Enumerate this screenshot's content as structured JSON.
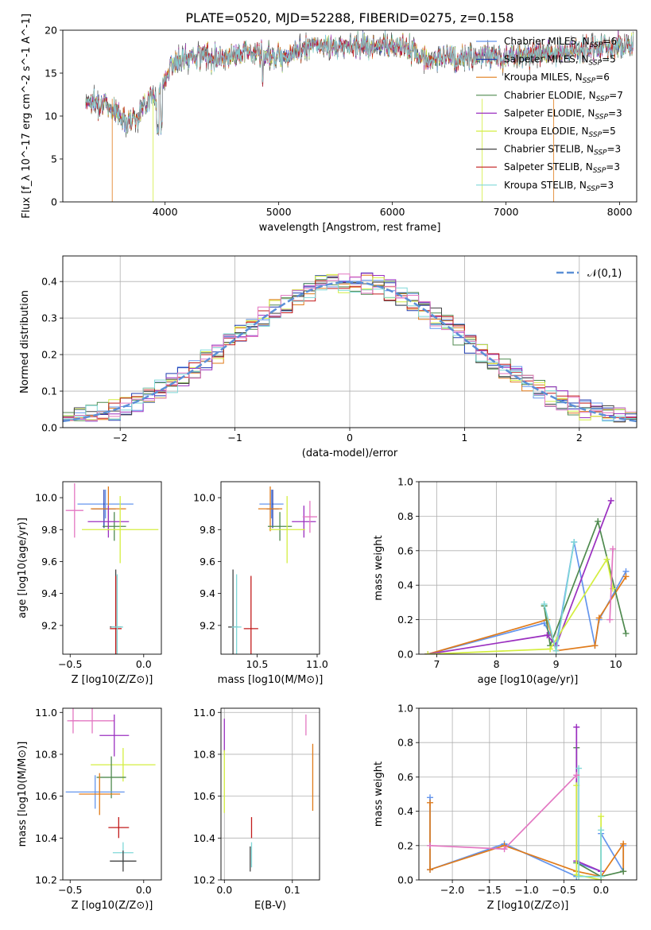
{
  "figure": {
    "title": "PLATE=0520, MJD=52288, FIBERID=0275, z=0.158"
  },
  "chart_data": [
    {
      "type": "line",
      "name": "spectrum",
      "xlabel": "wavelength [Angstrom, rest frame]",
      "ylabel": "Flux [f_λ 10^-17 erg cm^-2 s^-1 A^-1]",
      "xlim": [
        3100,
        8150
      ],
      "ylim": [
        0,
        20
      ],
      "xticks": [
        4000,
        5000,
        6000,
        7000,
        8000
      ],
      "yticks": [
        0,
        5,
        10,
        15,
        20
      ],
      "legend_loc": "top-right",
      "series": [
        {
          "name": "Chabrier MILES, N_SSP=6",
          "color": "#6495ed"
        },
        {
          "name": "Salpeter MILES, N_SSP=5",
          "color": "#1f3bb0"
        },
        {
          "name": "Kroupa MILES, N_SSP=6",
          "color": "#e07b1a"
        },
        {
          "name": "Chabrier ELODIE, N_SSP=7",
          "color": "#4f8a4f"
        },
        {
          "name": "Salpeter ELODIE, N_SSP=3",
          "color": "#9b30c0"
        },
        {
          "name": "Kroupa ELODIE, N_SSP=5",
          "color": "#d4ee40"
        },
        {
          "name": "Chabrier STELIB, N_SSP=3",
          "color": "#444444"
        },
        {
          "name": "Salpeter STELIB, N_SSP=3",
          "color": "#c21b1b"
        },
        {
          "name": "Kroupa STELIB, N_SSP=3",
          "color": "#7fd8d8"
        }
      ],
      "continuum": {
        "x": [
          3300,
          3450,
          3550,
          3650,
          3750,
          3850,
          3950,
          4050,
          4150,
          4300,
          4500,
          4700,
          4900,
          5100,
          5300,
          5500,
          5700,
          5900,
          6100,
          6300,
          6500,
          6700,
          6900,
          7100,
          7300,
          7500,
          7700,
          7900,
          8100
        ],
        "y": [
          11.8,
          11.5,
          10.8,
          9.5,
          9.8,
          12.0,
          12.5,
          16.0,
          16.5,
          17.2,
          16.8,
          17.6,
          17.0,
          17.2,
          18.2,
          18.0,
          18.3,
          18.0,
          18.3,
          16.5,
          17.0,
          16.8,
          17.0,
          17.0,
          17.4,
          17.5,
          17.8,
          18.1,
          18.4
        ]
      }
    },
    {
      "type": "line",
      "name": "residual-distribution",
      "xlabel": "(data-model)/error",
      "ylabel": "Normed distribution",
      "xlim": [
        -2.5,
        2.5
      ],
      "ylim": [
        0,
        0.47
      ],
      "xticks": [
        -2,
        -1,
        0,
        1,
        2
      ],
      "yticks": [
        0.0,
        0.1,
        0.2,
        0.3,
        0.4
      ],
      "grid": true,
      "legend_loc": "top-right",
      "reference": {
        "name": "𝒩(0,1)",
        "color": "#5b8fd6",
        "style": "dashed"
      }
    },
    {
      "type": "scatter",
      "name": "age-vs-Z",
      "xlabel": "Z [log10(Z/Z⊙)]",
      "ylabel": "age [log10(age/yr)]",
      "xlim": [
        -0.55,
        0.12
      ],
      "ylim": [
        9.02,
        10.1
      ],
      "xticks": [
        -0.5,
        0.0
      ],
      "yticks": [
        9.2,
        9.4,
        9.6,
        9.8,
        10.0
      ],
      "points": [
        {
          "x": -0.26,
          "y": 9.96,
          "xerr": 0.19,
          "yerr": 0.09,
          "color": "#6495ed"
        },
        {
          "x": -0.27,
          "y": 9.93,
          "xerr": 0.08,
          "yerr": 0.12,
          "color": "#1f3bb0"
        },
        {
          "x": -0.24,
          "y": 9.93,
          "xerr": 0.12,
          "yerr": 0.14,
          "color": "#e07b1a"
        },
        {
          "x": -0.2,
          "y": 9.82,
          "xerr": 0.08,
          "yerr": 0.09,
          "color": "#4f8a4f"
        },
        {
          "x": -0.24,
          "y": 9.85,
          "xerr": 0.14,
          "yerr": 0.1,
          "color": "#9b30c0"
        },
        {
          "x": -0.16,
          "y": 9.8,
          "xerr": 0.26,
          "yerr": 0.21,
          "color": "#d4ee40"
        },
        {
          "x": -0.19,
          "y": 9.19,
          "xerr": 0.04,
          "yerr": 0.36,
          "color": "#444444"
        },
        {
          "x": -0.19,
          "y": 9.18,
          "xerr": 0.04,
          "yerr": 0.33,
          "color": "#c21b1b"
        },
        {
          "x": -0.18,
          "y": 9.19,
          "xerr": 0.04,
          "yerr": 0.33,
          "color": "#7fd8d8"
        },
        {
          "x": -0.47,
          "y": 9.92,
          "xerr": 0.06,
          "yerr": 0.17,
          "color": "#e377c2"
        }
      ]
    },
    {
      "type": "scatter",
      "name": "age-vs-mass",
      "xlabel": "mass [log10(M/M⊙)]",
      "ylabel": "",
      "xlim": [
        10.2,
        11.02
      ],
      "ylim": [
        9.02,
        10.1
      ],
      "xticks": [
        10.5,
        11.0
      ],
      "yticks": [
        9.2,
        9.4,
        9.6,
        9.8,
        10.0
      ],
      "points": [
        {
          "x": 10.62,
          "y": 9.96,
          "xerr": 0.1,
          "yerr": 0.09,
          "color": "#6495ed"
        },
        {
          "x": 10.63,
          "y": 9.93,
          "xerr": 0.05,
          "yerr": 0.12,
          "color": "#1f3bb0"
        },
        {
          "x": 10.61,
          "y": 9.93,
          "xerr": 0.1,
          "yerr": 0.14,
          "color": "#e07b1a"
        },
        {
          "x": 10.69,
          "y": 9.82,
          "xerr": 0.1,
          "yerr": 0.09,
          "color": "#4f8a4f"
        },
        {
          "x": 10.89,
          "y": 9.85,
          "xerr": 0.1,
          "yerr": 0.1,
          "color": "#9b30c0"
        },
        {
          "x": 10.75,
          "y": 9.8,
          "xerr": 0.15,
          "yerr": 0.21,
          "color": "#d4ee40"
        },
        {
          "x": 10.3,
          "y": 9.19,
          "xerr": 0.04,
          "yerr": 0.36,
          "color": "#444444"
        },
        {
          "x": 10.45,
          "y": 9.18,
          "xerr": 0.06,
          "yerr": 0.33,
          "color": "#c21b1b"
        },
        {
          "x": 10.33,
          "y": 9.19,
          "xerr": 0.04,
          "yerr": 0.33,
          "color": "#7fd8d8"
        },
        {
          "x": 10.94,
          "y": 9.88,
          "xerr": 0.06,
          "yerr": 0.1,
          "color": "#e377c2"
        }
      ]
    },
    {
      "type": "line",
      "name": "mass-weight-vs-age",
      "xlabel": "age [log10(age/yr)]",
      "ylabel": "mass weight",
      "xlim": [
        6.7,
        10.35
      ],
      "ylim": [
        0,
        1.0
      ],
      "xticks": [
        7,
        8,
        9,
        10
      ],
      "yticks": [
        0.0,
        0.2,
        0.4,
        0.6,
        0.8,
        1.0
      ],
      "grid": true,
      "series": [
        {
          "color": "#6495ed",
          "x": [
            6.85,
            8.8,
            9.0,
            9.3,
            9.65,
            9.72,
            10.17
          ],
          "y": [
            0.0,
            0.18,
            0.05,
            0.65,
            0.05,
            0.2,
            0.48
          ]
        },
        {
          "color": "#e07b1a",
          "x": [
            6.85,
            8.85,
            9.0,
            9.65,
            9.72,
            10.17
          ],
          "y": [
            0.0,
            0.2,
            0.02,
            0.05,
            0.21,
            0.45
          ]
        },
        {
          "color": "#4f8a4f",
          "x": [
            8.8,
            8.9,
            9.7,
            10.17
          ],
          "y": [
            0.28,
            0.05,
            0.77,
            0.12
          ]
        },
        {
          "color": "#9b30c0",
          "x": [
            6.85,
            8.85,
            9.0,
            9.92
          ],
          "y": [
            0.0,
            0.11,
            0.05,
            0.89
          ]
        },
        {
          "color": "#d4ee40",
          "x": [
            6.85,
            8.9,
            9.85,
            9.95
          ],
          "y": [
            0.0,
            0.03,
            0.55,
            0.38
          ]
        },
        {
          "color": "#7fd8d8",
          "x": [
            8.8,
            9.0,
            9.3
          ],
          "y": [
            0.29,
            0.02,
            0.65
          ]
        },
        {
          "color": "#e377c2",
          "x": [
            9.9,
            9.95
          ],
          "y": [
            0.2,
            0.61
          ]
        }
      ]
    },
    {
      "type": "scatter",
      "name": "mass-vs-Z",
      "xlabel": "Z [log10(Z/Z⊙)]",
      "ylabel": "mass [log10(M/M⊙)]",
      "xlim": [
        -0.55,
        0.12
      ],
      "ylim": [
        10.2,
        11.02
      ],
      "xticks": [
        -0.5,
        0.0
      ],
      "yticks": [
        10.2,
        10.4,
        10.6,
        10.8,
        11.0
      ],
      "points": [
        {
          "x": -0.48,
          "y": 10.96,
          "xerr": 0.04,
          "yerr": 0.06,
          "color": "#e377c2"
        },
        {
          "x": -0.35,
          "y": 10.96,
          "xerr": 0.15,
          "yerr": 0.06,
          "color": "#e377c2"
        },
        {
          "x": -0.2,
          "y": 10.89,
          "xerr": 0.1,
          "yerr": 0.1,
          "color": "#9b30c0"
        },
        {
          "x": -0.14,
          "y": 10.75,
          "xerr": 0.22,
          "yerr": 0.08,
          "color": "#d4ee40"
        },
        {
          "x": -0.22,
          "y": 10.69,
          "xerr": 0.1,
          "yerr": 0.1,
          "color": "#4f8a4f"
        },
        {
          "x": -0.33,
          "y": 10.62,
          "xerr": 0.2,
          "yerr": 0.08,
          "color": "#6495ed"
        },
        {
          "x": -0.3,
          "y": 10.61,
          "xerr": 0.14,
          "yerr": 0.1,
          "color": "#e07b1a"
        },
        {
          "x": -0.17,
          "y": 10.45,
          "xerr": 0.07,
          "yerr": 0.05,
          "color": "#c21b1b"
        },
        {
          "x": -0.14,
          "y": 10.33,
          "xerr": 0.07,
          "yerr": 0.05,
          "color": "#7fd8d8"
        },
        {
          "x": -0.14,
          "y": 10.29,
          "xerr": 0.09,
          "yerr": 0.05,
          "color": "#444444"
        }
      ]
    },
    {
      "type": "scatter",
      "name": "mass-vs-ebv",
      "xlabel": "E(B-V)",
      "ylabel": "",
      "xlim": [
        -0.005,
        0.14
      ],
      "ylim": [
        10.2,
        11.02
      ],
      "xticks": [
        0.0,
        0.1
      ],
      "yticks": [
        10.2,
        10.4,
        10.6,
        10.8,
        11.0
      ],
      "grid": true,
      "points": [
        {
          "x": 0.0,
          "y": 10.89,
          "yerr": 0.08,
          "color": "#9b30c0"
        },
        {
          "x": 0.0,
          "y": 10.67,
          "yerr": 0.15,
          "color": "#d4ee40"
        },
        {
          "x": 0.04,
          "y": 10.45,
          "yerr": 0.05,
          "color": "#c21b1b"
        },
        {
          "x": 0.038,
          "y": 10.3,
          "yerr": 0.06,
          "color": "#444444"
        },
        {
          "x": 0.04,
          "y": 10.32,
          "yerr": 0.06,
          "color": "#7fd8d8"
        },
        {
          "x": 0.12,
          "y": 10.94,
          "yerr": 0.05,
          "color": "#e377c2"
        },
        {
          "x": 0.13,
          "y": 10.69,
          "yerr": 0.16,
          "color": "#e07b1a"
        }
      ]
    },
    {
      "type": "line",
      "name": "mass-weight-vs-Z",
      "xlabel": "Z [log10(Z/Z⊙)]",
      "ylabel": "mass weight",
      "xlim": [
        -2.45,
        0.48
      ],
      "ylim": [
        0,
        1.0
      ],
      "xticks": [
        -2.0,
        -1.5,
        -1.0,
        -0.5,
        0.0
      ],
      "yticks": [
        0.0,
        0.2,
        0.4,
        0.6,
        0.8,
        1.0
      ],
      "grid": true,
      "series": [
        {
          "color": "#6495ed",
          "x": [
            -2.3,
            -2.3,
            -1.3,
            -0.33,
            -0.33,
            0.0,
            0.0,
            0.3,
            0.3
          ],
          "y": [
            0.48,
            0.06,
            0.21,
            0.02,
            0.1,
            0.05,
            0.27,
            0.05,
            0.2
          ]
        },
        {
          "color": "#e07b1a",
          "x": [
            -2.3,
            -2.3,
            -1.3,
            -0.33,
            0.0,
            0.3,
            0.3
          ],
          "y": [
            0.45,
            0.06,
            0.2,
            0.05,
            0.02,
            0.21,
            0.05
          ]
        },
        {
          "color": "#4f8a4f",
          "x": [
            -0.33,
            -0.33,
            0.0,
            0.3
          ],
          "y": [
            0.77,
            0.1,
            0.02,
            0.05
          ]
        },
        {
          "color": "#9b30c0",
          "x": [
            -0.33,
            -0.33,
            0.0
          ],
          "y": [
            0.89,
            0.11,
            0.05
          ]
        },
        {
          "color": "#d4ee40",
          "x": [
            -0.33,
            -0.33,
            0.0,
            0.0
          ],
          "y": [
            0.55,
            0.03,
            0.0,
            0.37
          ]
        },
        {
          "color": "#7fd8d8",
          "x": [
            -0.3,
            -0.3,
            0.0,
            0.0
          ],
          "y": [
            0.65,
            0.02,
            0.02,
            0.29
          ]
        },
        {
          "color": "#e377c2",
          "x": [
            -2.3,
            -1.3,
            -0.33
          ],
          "y": [
            0.2,
            0.18,
            0.61
          ]
        }
      ]
    }
  ]
}
